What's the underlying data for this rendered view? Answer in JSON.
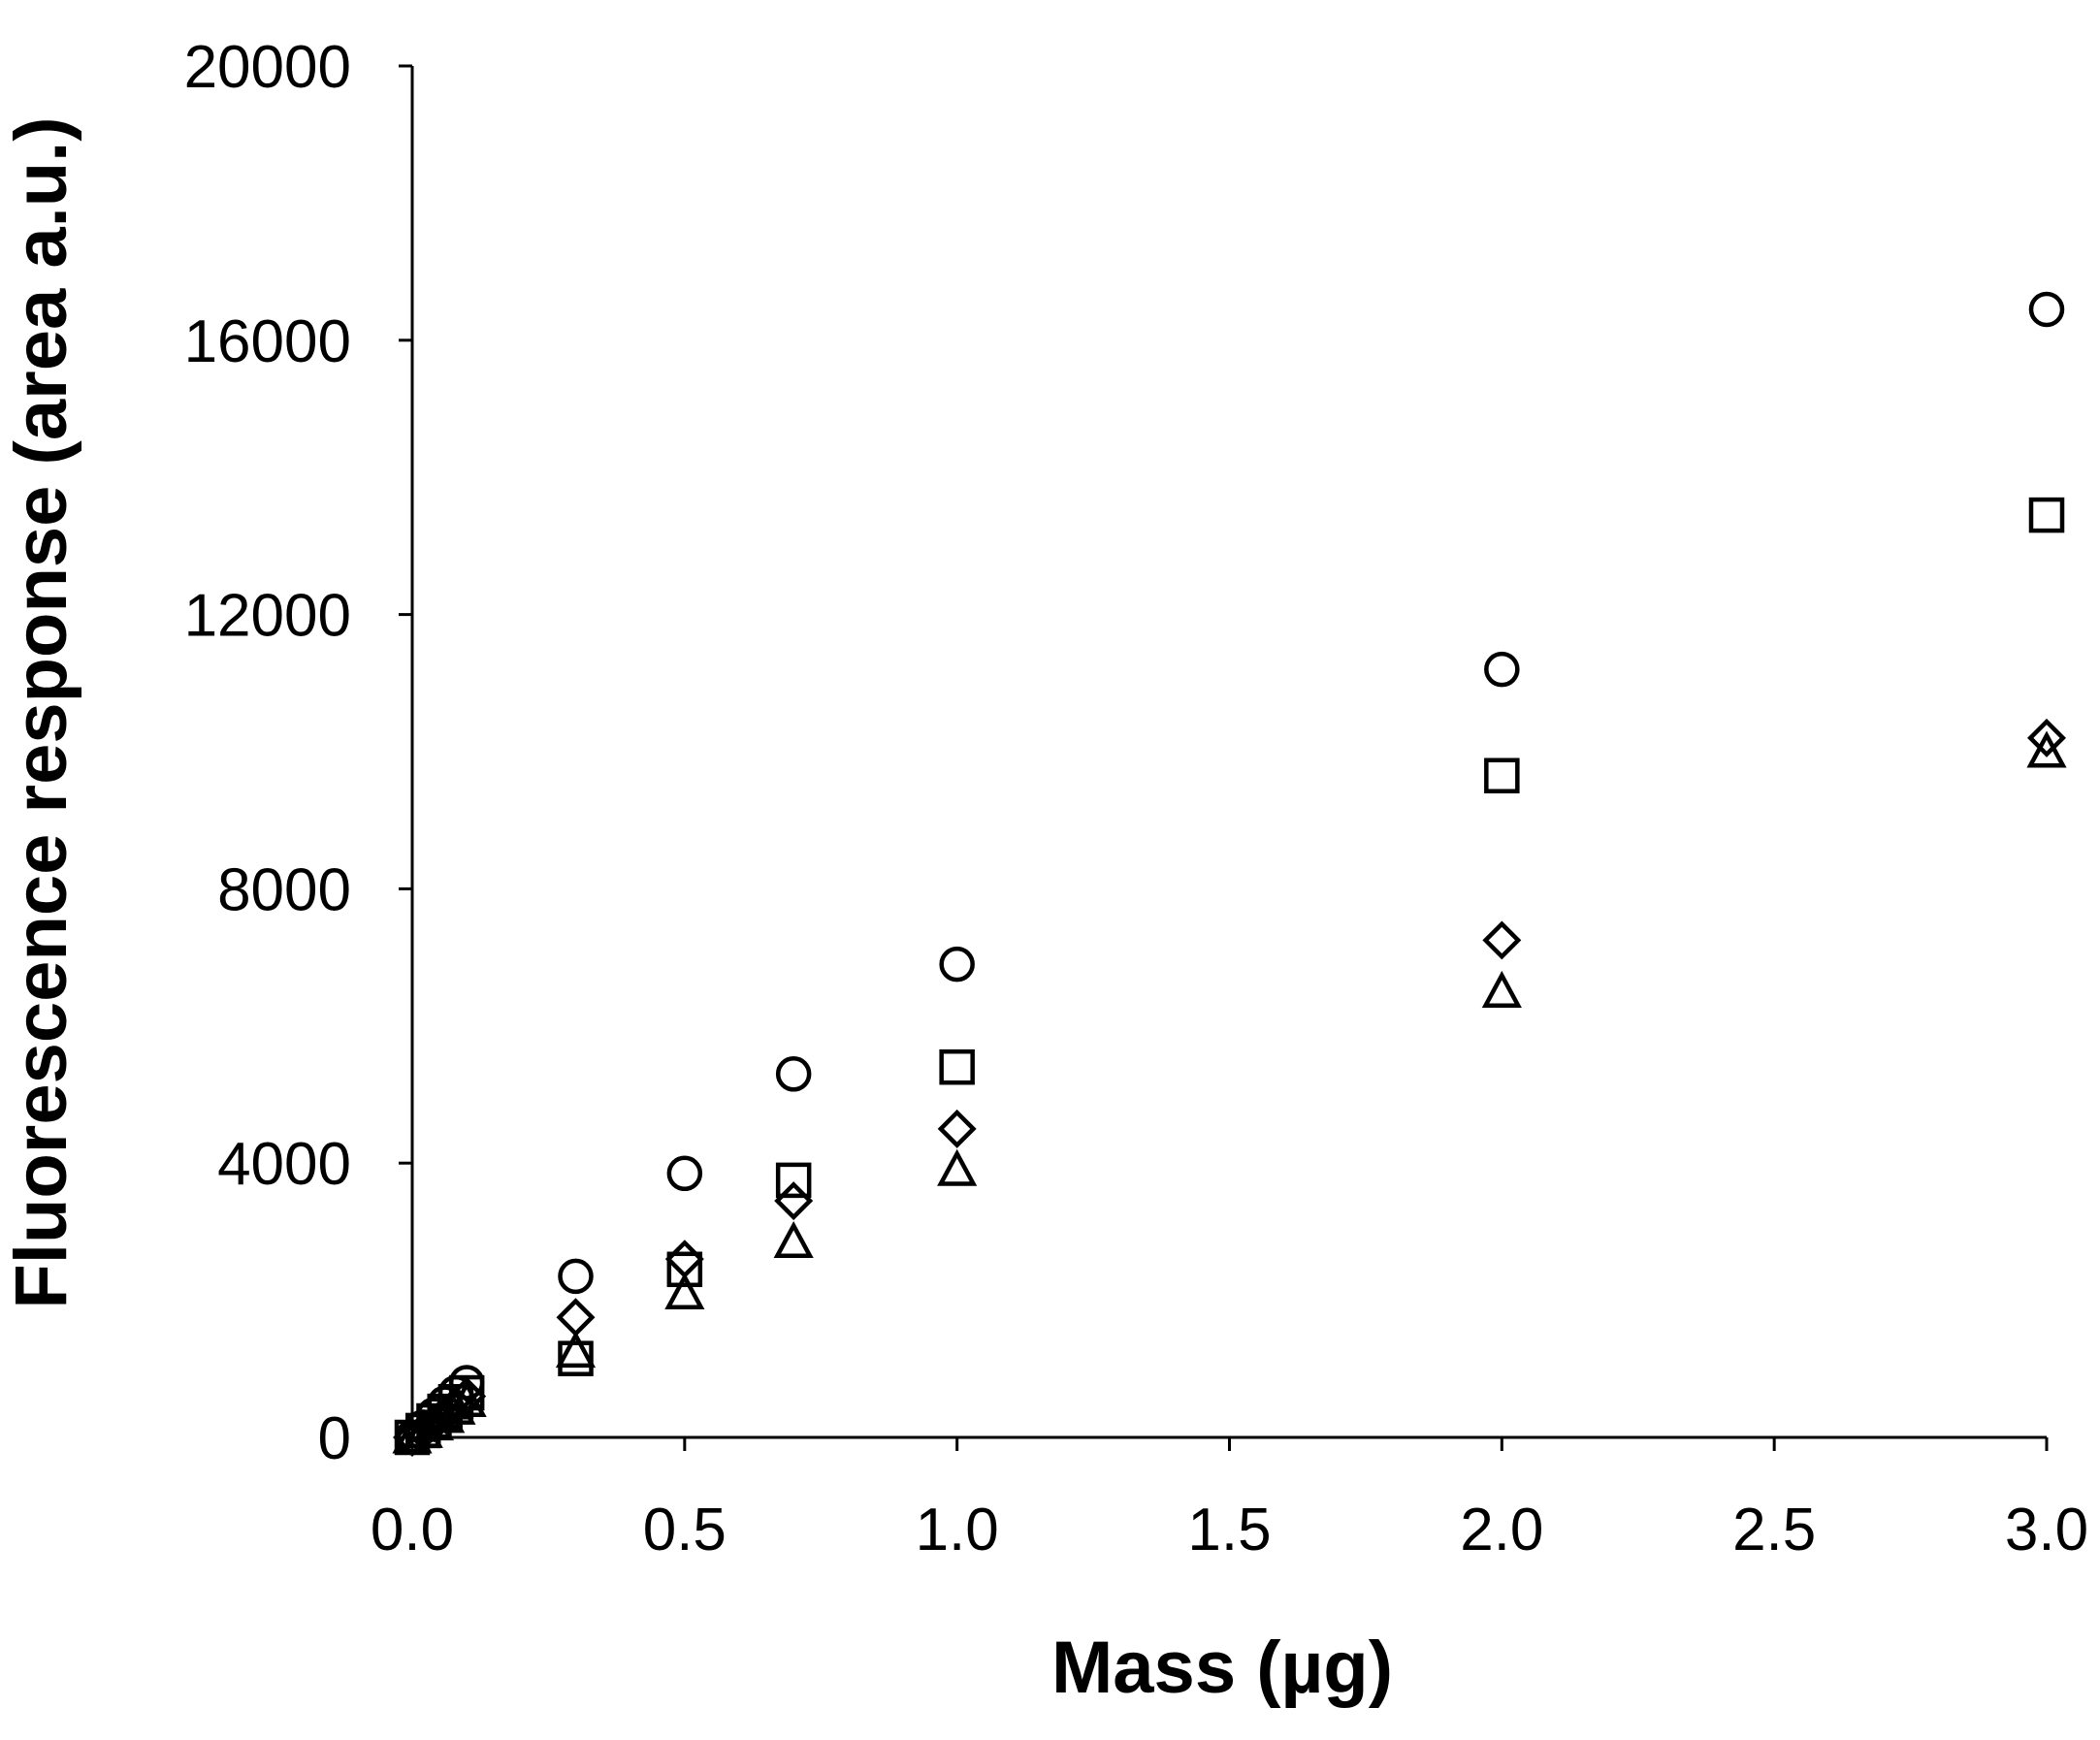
{
  "chart_data": {
    "type": "scatter",
    "title": "",
    "xlabel": "Mass (µg)",
    "ylabel": "Fluorescence response (area a.u.)",
    "xlim": [
      0,
      3
    ],
    "ylim": [
      0,
      20000
    ],
    "x_ticks": [
      "0.0",
      "0.5",
      "1.0",
      "1.5",
      "2.0",
      "2.5",
      "3.0"
    ],
    "y_ticks": [
      "0",
      "4000",
      "8000",
      "12000",
      "16000",
      "20000"
    ],
    "grid": false,
    "legend": "none",
    "series": [
      {
        "marker": "circle",
        "x": [
          0,
          0.02,
          0.04,
          0.06,
          0.08,
          0.1,
          0.3,
          0.5,
          0.7,
          1.0,
          2.0,
          3.0
        ],
        "y": [
          0,
          150,
          330,
          500,
          650,
          800,
          2350,
          3850,
          5300,
          6900,
          11200,
          16450
        ]
      },
      {
        "marker": "square",
        "x": [
          0,
          0.02,
          0.04,
          0.06,
          0.08,
          0.1,
          0.3,
          0.5,
          0.7,
          1.0,
          2.0,
          3.0
        ],
        "y": [
          0,
          100,
          240,
          380,
          520,
          650,
          1150,
          2450,
          3750,
          5400,
          9650,
          13450
        ]
      },
      {
        "marker": "diamond",
        "x": [
          0,
          0.02,
          0.04,
          0.06,
          0.08,
          0.1,
          0.3,
          0.5,
          0.7,
          1.0,
          2.0,
          3.0
        ],
        "y": [
          0,
          90,
          210,
          340,
          470,
          600,
          1750,
          2600,
          3450,
          4500,
          7250,
          10200
        ]
      },
      {
        "marker": "triangle",
        "x": [
          0,
          0.02,
          0.04,
          0.06,
          0.08,
          0.1,
          0.3,
          0.5,
          0.7,
          1.0,
          2.0,
          3.0
        ],
        "y": [
          0,
          80,
          190,
          300,
          420,
          530,
          1250,
          2100,
          2850,
          3900,
          6500,
          10000
        ]
      }
    ]
  }
}
